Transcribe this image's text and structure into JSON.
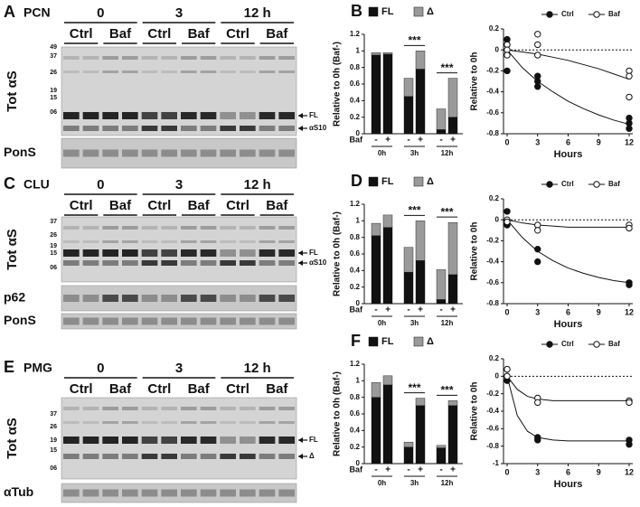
{
  "blots": [
    {
      "letter": "A",
      "cell": "PCN",
      "times": [
        "0",
        "3",
        "12 h"
      ],
      "groups": [
        "Ctrl",
        "Baf",
        "Ctrl",
        "Baf",
        "Ctrl",
        "Baf"
      ],
      "ladder": [
        "49",
        "37",
        "26",
        "19",
        "15",
        "06"
      ],
      "arrows": [
        "FL",
        "αS10"
      ],
      "rows": [
        "Tot αS",
        "PonS"
      ]
    },
    {
      "letter": "C",
      "cell": "CLU",
      "times": [
        "0",
        "3",
        "12 h"
      ],
      "groups": [
        "Ctrl",
        "Baf",
        "Ctrl",
        "Baf",
        "Ctrl",
        "Baf"
      ],
      "ladder": [
        "37",
        "26",
        "19",
        "15",
        "06"
      ],
      "arrows": [
        "FL",
        "αS10"
      ],
      "rows": [
        "Tot αS",
        "p62",
        "PonS"
      ]
    },
    {
      "letter": "E",
      "cell": "PMG",
      "times": [
        "0",
        "3",
        "12 h"
      ],
      "groups": [
        "Ctrl",
        "Baf",
        "Ctrl",
        "Baf",
        "Ctrl",
        "Baf"
      ],
      "ladder": [
        "37",
        "26",
        "19",
        "15",
        "06"
      ],
      "arrows": [
        "FL",
        "Δ"
      ],
      "rows": [
        "Tot αS",
        "αTub"
      ]
    }
  ],
  "chart_data": [
    {
      "type": "bar",
      "letter": "B",
      "y_label": "Relative to 0h (Baf-)",
      "ylim": [
        0,
        1.2
      ],
      "yticks": [
        0,
        0.2,
        0.4,
        0.6,
        0.8,
        1,
        1.2
      ],
      "categories": [
        "-",
        "+",
        "-",
        "+",
        "-",
        "+"
      ],
      "groups": [
        "0h",
        "3h",
        "12h"
      ],
      "group_axis_label": "Baf",
      "significance": [
        "***",
        "***"
      ],
      "series": [
        {
          "name": "FL",
          "color": "#111111",
          "values": [
            0.95,
            0.96,
            0.45,
            0.78,
            0.05,
            0.2
          ]
        },
        {
          "name": "Δ",
          "color": "#9a9a9a",
          "values": [
            0.03,
            0.02,
            0.22,
            0.22,
            0.25,
            0.47
          ]
        }
      ]
    },
    {
      "type": "scatter",
      "x_label": "Hours",
      "y_label": "Relative to 0h",
      "xlim": [
        0,
        12
      ],
      "xticks": [
        0,
        3,
        6,
        9,
        12
      ],
      "ylim": [
        -0.8,
        0.2
      ],
      "yticks": [
        -0.8,
        -0.6,
        -0.4,
        -0.2,
        0,
        0.2
      ],
      "hline": 0,
      "series": [
        {
          "name": "Ctrl",
          "color": "#111111",
          "filled": true,
          "x": [
            0,
            0,
            0,
            3,
            3,
            3,
            12,
            12,
            12
          ],
          "values": [
            0.1,
            0.05,
            -0.2,
            -0.25,
            -0.3,
            -0.35,
            -0.65,
            -0.7,
            -0.75
          ],
          "fit_x": [
            0,
            1.5,
            3,
            4.5,
            6,
            7.5,
            9,
            10.5,
            12
          ],
          "fit_values": [
            0,
            -0.17,
            -0.3,
            -0.4,
            -0.49,
            -0.56,
            -0.62,
            -0.67,
            -0.71
          ]
        },
        {
          "name": "Baf",
          "color": "#111111",
          "filled": false,
          "x": [
            0,
            0,
            0,
            3,
            3,
            3,
            12,
            12,
            12
          ],
          "values": [
            0.05,
            0,
            -0.05,
            0.15,
            0.05,
            -0.05,
            -0.2,
            -0.25,
            -0.45
          ],
          "fit_x": [
            0,
            1.5,
            3,
            4.5,
            6,
            7.5,
            9,
            10.5,
            12
          ],
          "fit_values": [
            0,
            -0.02,
            -0.04,
            -0.07,
            -0.1,
            -0.14,
            -0.18,
            -0.23,
            -0.28
          ]
        }
      ]
    },
    {
      "type": "bar",
      "letter": "D",
      "y_label": "Relative to 0h (Baf-)",
      "ylim": [
        0,
        1.2
      ],
      "yticks": [
        0,
        0.2,
        0.4,
        0.6,
        0.8,
        1,
        1.2
      ],
      "categories": [
        "-",
        "+",
        "-",
        "+",
        "-",
        "+"
      ],
      "groups": [
        "0h",
        "3h",
        "12h"
      ],
      "group_axis_label": "Baf",
      "significance": [
        "***",
        "***"
      ],
      "series": [
        {
          "name": "FL",
          "color": "#111111",
          "values": [
            0.82,
            0.92,
            0.38,
            0.52,
            0.05,
            0.35
          ]
        },
        {
          "name": "Δ",
          "color": "#9a9a9a",
          "values": [
            0.15,
            0.15,
            0.3,
            0.48,
            0.36,
            0.63
          ]
        }
      ]
    },
    {
      "type": "scatter",
      "x_label": "Hours",
      "y_label": "Relative to 0h",
      "xlim": [
        0,
        12
      ],
      "xticks": [
        0,
        3,
        6,
        9,
        12
      ],
      "ylim": [
        -0.8,
        0.2
      ],
      "yticks": [
        -0.8,
        -0.6,
        -0.4,
        -0.2,
        0,
        0.2
      ],
      "hline": 0,
      "series": [
        {
          "name": "Ctrl",
          "color": "#111111",
          "filled": true,
          "x": [
            0,
            0,
            3,
            3,
            12,
            12
          ],
          "values": [
            0.08,
            -0.05,
            -0.28,
            -0.4,
            -0.6,
            -0.62
          ],
          "fit_x": [
            0,
            1.5,
            3,
            4.5,
            6,
            7.5,
            9,
            10.5,
            12
          ],
          "fit_values": [
            0,
            -0.17,
            -0.3,
            -0.39,
            -0.46,
            -0.51,
            -0.55,
            -0.58,
            -0.6
          ]
        },
        {
          "name": "Baf",
          "color": "#111111",
          "filled": false,
          "x": [
            0,
            0,
            3,
            3,
            12,
            12
          ],
          "values": [
            0,
            -0.02,
            -0.05,
            -0.1,
            -0.05,
            -0.08
          ],
          "fit_x": [
            0,
            1.5,
            3,
            4.5,
            6,
            7.5,
            9,
            10.5,
            12
          ],
          "fit_values": [
            0,
            -0.03,
            -0.05,
            -0.06,
            -0.07,
            -0.07,
            -0.07,
            -0.07,
            -0.07
          ]
        }
      ]
    },
    {
      "type": "bar",
      "letter": "F",
      "y_label": "Relative to 0h (Baf-)",
      "ylim": [
        0,
        1.2
      ],
      "yticks": [
        0,
        0.2,
        0.4,
        0.6,
        0.8,
        1,
        1.2
      ],
      "categories": [
        "-",
        "+",
        "-",
        "+",
        "-",
        "+"
      ],
      "groups": [
        "0h",
        "3h",
        "12h"
      ],
      "group_axis_label": "Baf",
      "significance": [
        "***",
        "***"
      ],
      "series": [
        {
          "name": "FL",
          "color": "#111111",
          "values": [
            0.8,
            0.95,
            0.2,
            0.7,
            0.19,
            0.7
          ]
        },
        {
          "name": "Δ",
          "color": "#9a9a9a",
          "values": [
            0.18,
            0.11,
            0.06,
            0.09,
            0.03,
            0.06
          ]
        }
      ]
    },
    {
      "type": "scatter",
      "x_label": "Hours",
      "y_label": "Relative to 0h",
      "xlim": [
        0,
        12
      ],
      "xticks": [
        0,
        3,
        6,
        9,
        12
      ],
      "ylim": [
        -1,
        0.2
      ],
      "yticks": [
        -1,
        -0.8,
        -0.6,
        -0.4,
        -0.2,
        0,
        0.2
      ],
      "hline": 0,
      "series": [
        {
          "name": "Ctrl",
          "color": "#111111",
          "filled": true,
          "x": [
            0,
            0,
            3,
            3,
            12,
            12
          ],
          "values": [
            0,
            -0.05,
            -0.7,
            -0.73,
            -0.73,
            -0.78
          ],
          "fit_x": [
            0,
            1,
            2,
            3,
            4.5,
            6,
            9,
            12
          ],
          "fit_values": [
            0,
            -0.45,
            -0.63,
            -0.7,
            -0.73,
            -0.74,
            -0.74,
            -0.74
          ]
        },
        {
          "name": "Baf",
          "color": "#111111",
          "filled": false,
          "x": [
            0,
            0,
            3,
            3,
            12,
            12
          ],
          "values": [
            0.08,
            0,
            -0.25,
            -0.3,
            -0.28,
            -0.3
          ],
          "fit_x": [
            0,
            1,
            2,
            3,
            4.5,
            6,
            9,
            12
          ],
          "fit_values": [
            0,
            -0.15,
            -0.23,
            -0.26,
            -0.28,
            -0.28,
            -0.28,
            -0.28
          ]
        }
      ]
    }
  ]
}
